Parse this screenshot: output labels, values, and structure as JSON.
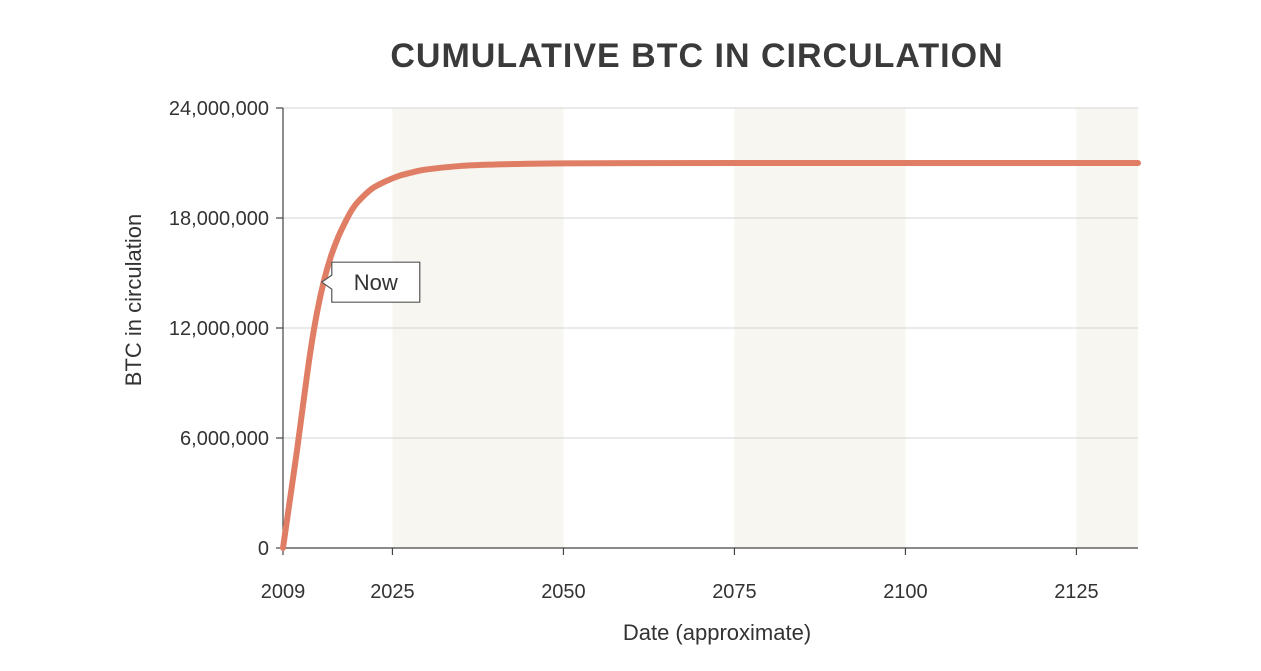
{
  "chart_data": {
    "type": "line",
    "title": "CUMULATIVE BTC IN CIRCULATION",
    "xlabel": "Date (approximate)",
    "ylabel": "BTC in circulation",
    "x_ticks": [
      "2009",
      "2025",
      "2050",
      "2075",
      "2100",
      "2125"
    ],
    "x_tick_values": [
      2009,
      2025,
      2050,
      2075,
      2100,
      2125
    ],
    "y_ticks": [
      "0",
      "6,000,000",
      "12,000,000",
      "18,000,000",
      "24,000,000"
    ],
    "y_tick_values": [
      0,
      6000000,
      12000000,
      18000000,
      24000000
    ],
    "xlim": [
      2009,
      2134
    ],
    "ylim": [
      0,
      24000000
    ],
    "grid": "horizontal",
    "shaded_x_ranges": [
      [
        2025,
        2050
      ],
      [
        2075,
        2100
      ],
      [
        2125,
        2134
      ]
    ],
    "series": [
      {
        "color": "#e07e65",
        "x": [
          2009,
          2010,
          2011,
          2012,
          2013,
          2014,
          2015,
          2016,
          2017,
          2018,
          2019,
          2020,
          2022,
          2024,
          2026,
          2028,
          2030,
          2035,
          2040,
          2045,
          2050,
          2060,
          2075,
          2100,
          2125,
          2134
        ],
        "y": [
          0,
          2600000,
          5200000,
          8000000,
          10700000,
          12900000,
          14600000,
          15900000,
          16900000,
          17700000,
          18400000,
          18900000,
          19600000,
          20000000,
          20300000,
          20500000,
          20650000,
          20840000,
          20920000,
          20960000,
          20980000,
          20995000,
          21000000,
          21000000,
          21000000,
          21000000
        ]
      }
    ],
    "annotations": [
      {
        "text": "Now",
        "x": 2013.5,
        "y": 14500000
      }
    ]
  },
  "colors": {
    "line": "#e07e65",
    "band": "#f7f6f1",
    "grid": "#d4d4d4",
    "axis": "#444444",
    "text": "#333333"
  }
}
